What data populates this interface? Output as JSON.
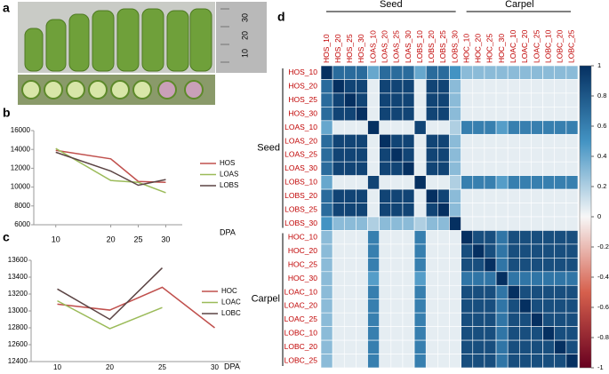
{
  "panel_labels": [
    "a",
    "b",
    "c",
    "d"
  ],
  "ruler_labels": [
    "30",
    "20",
    "10"
  ],
  "chart_data": [
    {
      "type": "line",
      "xlabel": "DPA",
      "x": [
        10,
        20,
        25,
        30
      ],
      "xlim": [
        6,
        33
      ],
      "xticks": [
        10,
        20,
        25,
        30
      ],
      "ylim": [
        6000,
        16000
      ],
      "yticks": [
        6000,
        8000,
        10000,
        12000,
        14000,
        16000
      ],
      "series": [
        {
          "name": "HOS",
          "color": "#c0504d",
          "values": [
            13900,
            13000,
            10600,
            10500
          ]
        },
        {
          "name": "LOAS",
          "color": "#9bbb59",
          "values": [
            14100,
            10700,
            10500,
            9400
          ]
        },
        {
          "name": "LOBS",
          "color": "#5b4444",
          "values": [
            13700,
            11700,
            10200,
            10800
          ]
        }
      ]
    },
    {
      "type": "line",
      "xlabel": "DPA",
      "categories": [
        "10",
        "20",
        "25",
        "30"
      ],
      "ylim": [
        12400,
        13600
      ],
      "yticks": [
        12400,
        12600,
        12800,
        13000,
        13200,
        13400,
        13600
      ],
      "series": [
        {
          "name": "HOC",
          "color": "#c0504d",
          "values": [
            13080,
            13010,
            13280,
            12800
          ]
        },
        {
          "name": "LOAC",
          "color": "#9bbb59",
          "values": [
            13120,
            12790,
            13040,
            null
          ]
        },
        {
          "name": "LOBC",
          "color": "#5b4444",
          "values": [
            13260,
            12900,
            13510,
            null
          ]
        }
      ]
    },
    {
      "type": "heatmap",
      "group_labels": [
        "Seed",
        "Carpel"
      ],
      "labels": [
        "HOS_10",
        "HOS_20",
        "HOS_25",
        "HOS_30",
        "LOAS_10",
        "LOAS_20",
        "LOAS_25",
        "LOAS_30",
        "LOBS_10",
        "LOBS_20",
        "LOBS_25",
        "LOBS_30",
        "HOC_10",
        "HOC_20",
        "HOC_25",
        "HOC_30",
        "LOAC_10",
        "LOAC_20",
        "LOAC_25",
        "LOBC_10",
        "LOBC_20",
        "LOBC_25"
      ],
      "colorbar_lim": [
        -1,
        1
      ],
      "colorbar_ticks": [
        -1,
        -0.8,
        -0.6,
        -0.4,
        -0.2,
        0,
        0.2,
        0.4,
        0.6,
        0.8,
        1
      ],
      "values": [
        [
          1,
          0.7,
          0.7,
          0.7,
          0.4,
          0.7,
          0.7,
          0.7,
          0.4,
          0.7,
          0.7,
          0.5,
          0.3,
          0.3,
          0.3,
          0.3,
          0.3,
          0.3,
          0.3,
          0.3,
          0.3,
          0.3
        ],
        [
          0.7,
          1,
          0.9,
          0.9,
          0.05,
          0.9,
          0.9,
          0.9,
          0.05,
          0.9,
          0.9,
          0.3,
          0.05,
          0.05,
          0.05,
          0.05,
          0.05,
          0.05,
          0.05,
          0.05,
          0.05,
          0.05
        ],
        [
          0.7,
          0.9,
          1,
          0.9,
          0.05,
          0.9,
          0.9,
          0.9,
          0.05,
          0.9,
          0.9,
          0.3,
          0.05,
          0.05,
          0.05,
          0.05,
          0.05,
          0.05,
          0.05,
          0.05,
          0.05,
          0.05
        ],
        [
          0.7,
          0.9,
          0.9,
          1,
          0.05,
          0.9,
          0.9,
          0.9,
          0.05,
          0.9,
          0.9,
          0.3,
          0.05,
          0.05,
          0.05,
          0.05,
          0.05,
          0.05,
          0.05,
          0.05,
          0.05,
          0.05
        ],
        [
          0.4,
          0.05,
          0.05,
          0.05,
          1,
          0.05,
          0.05,
          0.05,
          0.9,
          0.05,
          0.05,
          0.2,
          0.6,
          0.6,
          0.6,
          0.45,
          0.6,
          0.6,
          0.6,
          0.6,
          0.6,
          0.6
        ],
        [
          0.7,
          0.9,
          0.9,
          0.9,
          0.05,
          1,
          0.9,
          0.9,
          0.05,
          0.9,
          0.9,
          0.3,
          0.05,
          0.05,
          0.05,
          0.05,
          0.05,
          0.05,
          0.05,
          0.05,
          0.05,
          0.05
        ],
        [
          0.7,
          0.9,
          0.9,
          0.9,
          0.05,
          0.9,
          1,
          0.9,
          0.05,
          0.9,
          0.9,
          0.3,
          0.05,
          0.05,
          0.05,
          0.05,
          0.05,
          0.05,
          0.05,
          0.05,
          0.05,
          0.05
        ],
        [
          0.7,
          0.9,
          0.9,
          0.9,
          0.05,
          0.9,
          0.9,
          1,
          0.05,
          0.9,
          0.9,
          0.3,
          0.05,
          0.05,
          0.05,
          0.05,
          0.05,
          0.05,
          0.05,
          0.05,
          0.05,
          0.05
        ],
        [
          0.4,
          0.05,
          0.05,
          0.05,
          0.9,
          0.05,
          0.05,
          0.05,
          1,
          0.05,
          0.05,
          0.2,
          0.6,
          0.6,
          0.6,
          0.45,
          0.6,
          0.6,
          0.6,
          0.6,
          0.6,
          0.6
        ],
        [
          0.7,
          0.9,
          0.9,
          0.9,
          0.05,
          0.9,
          0.9,
          0.9,
          0.05,
          1,
          0.9,
          0.3,
          0.05,
          0.05,
          0.05,
          0.05,
          0.05,
          0.05,
          0.05,
          0.05,
          0.05,
          0.05
        ],
        [
          0.7,
          0.9,
          0.9,
          0.9,
          0.05,
          0.9,
          0.9,
          0.9,
          0.05,
          0.9,
          1,
          0.3,
          0.05,
          0.05,
          0.05,
          0.05,
          0.05,
          0.05,
          0.05,
          0.05,
          0.05,
          0.05
        ],
        [
          0.5,
          0.3,
          0.3,
          0.3,
          0.2,
          0.3,
          0.3,
          0.3,
          0.2,
          0.3,
          0.3,
          1,
          0.05,
          0.05,
          0.05,
          0.05,
          0.05,
          0.05,
          0.05,
          0.05,
          0.05,
          0.05
        ],
        [
          0.3,
          0.05,
          0.05,
          0.05,
          0.6,
          0.05,
          0.05,
          0.05,
          0.6,
          0.05,
          0.05,
          0.05,
          1,
          0.85,
          0.85,
          0.65,
          0.85,
          0.85,
          0.85,
          0.85,
          0.85,
          0.85
        ],
        [
          0.3,
          0.05,
          0.05,
          0.05,
          0.6,
          0.05,
          0.05,
          0.05,
          0.6,
          0.05,
          0.05,
          0.05,
          0.85,
          1,
          0.85,
          0.65,
          0.85,
          0.85,
          0.85,
          0.85,
          0.85,
          0.85
        ],
        [
          0.3,
          0.05,
          0.05,
          0.05,
          0.6,
          0.05,
          0.05,
          0.05,
          0.6,
          0.05,
          0.05,
          0.05,
          0.85,
          0.85,
          1,
          0.65,
          0.85,
          0.85,
          0.85,
          0.85,
          0.85,
          0.85
        ],
        [
          0.3,
          0.05,
          0.05,
          0.05,
          0.45,
          0.05,
          0.05,
          0.05,
          0.45,
          0.05,
          0.05,
          0.05,
          0.65,
          0.65,
          0.65,
          1,
          0.65,
          0.65,
          0.65,
          0.65,
          0.65,
          0.65
        ],
        [
          0.3,
          0.05,
          0.05,
          0.05,
          0.6,
          0.05,
          0.05,
          0.05,
          0.6,
          0.05,
          0.05,
          0.05,
          0.85,
          0.85,
          0.85,
          0.65,
          1,
          0.85,
          0.85,
          0.85,
          0.85,
          0.85
        ],
        [
          0.3,
          0.05,
          0.05,
          0.05,
          0.6,
          0.05,
          0.05,
          0.05,
          0.6,
          0.05,
          0.05,
          0.05,
          0.85,
          0.85,
          0.85,
          0.65,
          0.85,
          1,
          0.85,
          0.85,
          0.85,
          0.85
        ],
        [
          0.3,
          0.05,
          0.05,
          0.05,
          0.6,
          0.05,
          0.05,
          0.05,
          0.6,
          0.05,
          0.05,
          0.05,
          0.85,
          0.85,
          0.85,
          0.65,
          0.85,
          0.85,
          1,
          0.85,
          0.85,
          0.85
        ],
        [
          0.3,
          0.05,
          0.05,
          0.05,
          0.6,
          0.05,
          0.05,
          0.05,
          0.6,
          0.05,
          0.05,
          0.05,
          0.85,
          0.85,
          0.85,
          0.65,
          0.85,
          0.85,
          0.85,
          1,
          0.85,
          0.85
        ],
        [
          0.3,
          0.05,
          0.05,
          0.05,
          0.6,
          0.05,
          0.05,
          0.05,
          0.6,
          0.05,
          0.05,
          0.05,
          0.85,
          0.85,
          0.85,
          0.65,
          0.85,
          0.85,
          0.85,
          0.85,
          1,
          0.85
        ],
        [
          0.3,
          0.05,
          0.05,
          0.05,
          0.6,
          0.05,
          0.05,
          0.05,
          0.6,
          0.05,
          0.05,
          0.05,
          0.85,
          0.85,
          0.85,
          0.65,
          0.85,
          0.85,
          0.85,
          0.85,
          0.85,
          1
        ]
      ]
    }
  ]
}
